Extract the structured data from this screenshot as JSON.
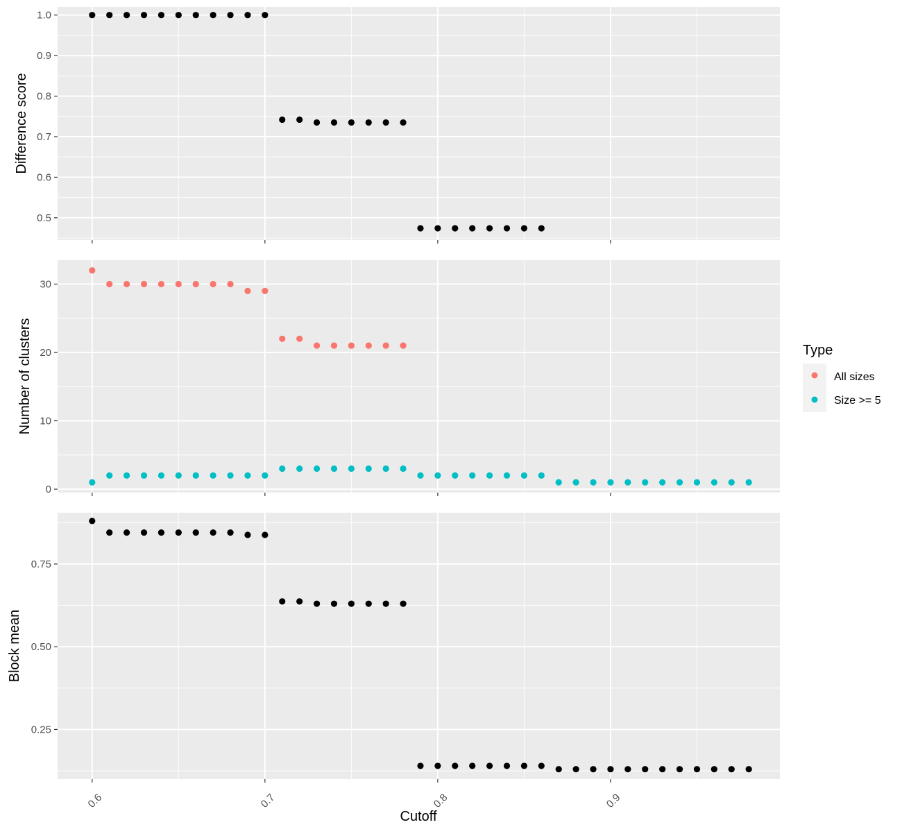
{
  "chart_data": {
    "type": "scatter",
    "shared_x": {
      "label": "Cutoff",
      "ticks": [
        0.6,
        0.7,
        0.8,
        0.9
      ],
      "tick_labels": [
        "0.6",
        "0.7",
        "0.8",
        "0.9"
      ],
      "range": [
        0.58,
        0.998
      ]
    },
    "panels": [
      {
        "id": "difference",
        "ylabel": "Difference score",
        "ylim": [
          0.445,
          1.02
        ],
        "yticks": [
          0.5,
          0.6,
          0.7,
          0.8,
          0.9,
          1.0
        ],
        "ytick_labels": [
          "0.5",
          "0.6",
          "0.7",
          "0.8",
          "0.9",
          "1.0"
        ],
        "series": [
          {
            "color": "#000000",
            "x": [
              0.6,
              0.61,
              0.62,
              0.63,
              0.64,
              0.65,
              0.66,
              0.67,
              0.68,
              0.69,
              0.7,
              0.71,
              0.72,
              0.73,
              0.74,
              0.75,
              0.76,
              0.77,
              0.78,
              0.79,
              0.8,
              0.81,
              0.82,
              0.83,
              0.84,
              0.85,
              0.86
            ],
            "y": [
              1.0,
              1.0,
              1.0,
              1.0,
              1.0,
              1.0,
              1.0,
              1.0,
              1.0,
              1.0,
              1.0,
              0.742,
              0.742,
              0.735,
              0.735,
              0.735,
              0.735,
              0.735,
              0.735,
              0.474,
              0.474,
              0.474,
              0.474,
              0.474,
              0.474,
              0.474,
              0.474
            ]
          }
        ]
      },
      {
        "id": "clusters",
        "ylabel": "Number of clusters",
        "ylim": [
          -0.5,
          33.5
        ],
        "yticks": [
          0,
          10,
          20,
          30
        ],
        "ytick_labels": [
          "0",
          "10",
          "20",
          "30"
        ],
        "series": [
          {
            "name": "All sizes",
            "color": "#f8766d",
            "x": [
              0.6,
              0.61,
              0.62,
              0.63,
              0.64,
              0.65,
              0.66,
              0.67,
              0.68,
              0.69,
              0.7,
              0.71,
              0.72,
              0.73,
              0.74,
              0.75,
              0.76,
              0.77,
              0.78
            ],
            "y": [
              32,
              30,
              30,
              30,
              30,
              30,
              30,
              30,
              30,
              29,
              29,
              22,
              22,
              21,
              21,
              21,
              21,
              21,
              21
            ]
          },
          {
            "name": "Size >= 5",
            "color": "#00bfc4",
            "x": [
              0.6,
              0.61,
              0.62,
              0.63,
              0.64,
              0.65,
              0.66,
              0.67,
              0.68,
              0.69,
              0.7,
              0.71,
              0.72,
              0.73,
              0.74,
              0.75,
              0.76,
              0.77,
              0.78,
              0.79,
              0.8,
              0.81,
              0.82,
              0.83,
              0.84,
              0.85,
              0.86,
              0.87,
              0.88,
              0.89,
              0.9,
              0.91,
              0.92,
              0.93,
              0.94,
              0.95,
              0.96,
              0.97,
              0.98
            ],
            "y": [
              1,
              2,
              2,
              2,
              2,
              2,
              2,
              2,
              2,
              2,
              2,
              3,
              3,
              3,
              3,
              3,
              3,
              3,
              3,
              2,
              2,
              2,
              2,
              2,
              2,
              2,
              2,
              1,
              1,
              1,
              1,
              1,
              1,
              1,
              1,
              1,
              1,
              1,
              1
            ]
          }
        ]
      },
      {
        "id": "block",
        "ylabel": "Block mean",
        "ylim": [
          0.1,
          0.905
        ],
        "yticks": [
          0.25,
          0.5,
          0.75
        ],
        "ytick_labels": [
          "0.25",
          "0.50",
          "0.75"
        ],
        "series": [
          {
            "color": "#000000",
            "x": [
              0.6,
              0.61,
              0.62,
              0.63,
              0.64,
              0.65,
              0.66,
              0.67,
              0.68,
              0.69,
              0.7,
              0.71,
              0.72,
              0.73,
              0.74,
              0.75,
              0.76,
              0.77,
              0.78,
              0.79,
              0.8,
              0.81,
              0.82,
              0.83,
              0.84,
              0.85,
              0.86,
              0.87,
              0.88,
              0.89,
              0.9,
              0.91,
              0.92,
              0.93,
              0.94,
              0.95,
              0.96,
              0.97,
              0.98
            ],
            "y": [
              0.88,
              0.845,
              0.845,
              0.845,
              0.845,
              0.845,
              0.845,
              0.845,
              0.845,
              0.838,
              0.838,
              0.637,
              0.637,
              0.63,
              0.63,
              0.63,
              0.63,
              0.63,
              0.63,
              0.14,
              0.14,
              0.14,
              0.14,
              0.14,
              0.14,
              0.14,
              0.14,
              0.13,
              0.13,
              0.13,
              0.13,
              0.13,
              0.13,
              0.13,
              0.13,
              0.13,
              0.13,
              0.13,
              0.13
            ]
          }
        ]
      }
    ],
    "legend": {
      "title": "Type",
      "placement": "right",
      "entries": [
        {
          "label": "All sizes",
          "color": "#f8766d"
        },
        {
          "label": "Size >= 5",
          "color": "#00bfc4"
        }
      ]
    },
    "grid": true,
    "panel_background": "#ebebeb",
    "grid_color": "#ffffff"
  }
}
